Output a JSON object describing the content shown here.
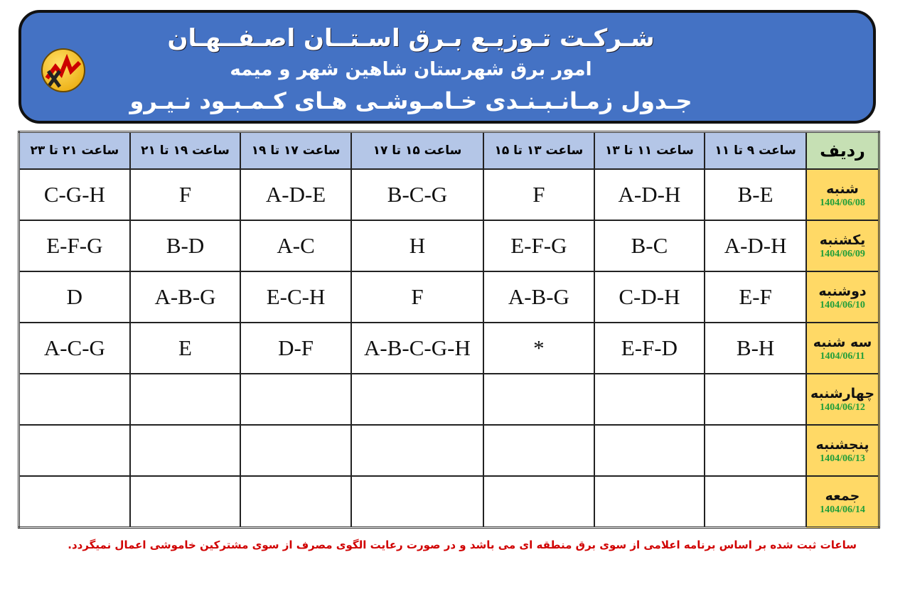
{
  "header": {
    "company": "شـرکـت تـوزیـع بـرق اسـتــان اصـفــهـان",
    "department": "امور برق شهرستان شاهین شهر و میمه",
    "table_title": "جـدول زمـانـبـنـدی خـامـوشـی هـای کـمـبـود نـیـرو",
    "logo_icon": "tavanir-logo"
  },
  "columns": [
    "ردیف",
    "ساعت ۹ تا ۱۱",
    "ساعت ۱۱ تا ۱۳",
    "ساعت ۱۳ تا ۱۵",
    "ساعت ۱۵ تا ۱۷",
    "ساعت ۱۷ تا ۱۹",
    "ساعت ۱۹ تا ۲۱",
    "ساعت ۲۱ تا ۲۳"
  ],
  "rows": [
    {
      "day": "شنبه",
      "date": "1404/06/08",
      "cells": [
        "B-E",
        "A-D-H",
        "F",
        "B-C-G",
        "A-D-E",
        "F",
        "C-G-H"
      ]
    },
    {
      "day": "یکشنبه",
      "date": "1404/06/09",
      "cells": [
        "A-D-H",
        "B-C",
        "E-F-G",
        "H",
        "A-C",
        "B-D",
        "E-F-G"
      ]
    },
    {
      "day": "دوشنبه",
      "date": "1404/06/10",
      "cells": [
        "E-F",
        "C-D-H",
        "A-B-G",
        "F",
        "E-C-H",
        "A-B-G",
        "D"
      ]
    },
    {
      "day": "سه شنبه",
      "date": "1404/06/11",
      "cells": [
        "B-H",
        "E-F-D",
        "*",
        "A-B-C-G-H",
        "D-F",
        "E",
        "A-C-G"
      ]
    },
    {
      "day": "چهارشنبه",
      "date": "1404/06/12",
      "cells": [
        "",
        "",
        "",
        "",
        "",
        "",
        ""
      ]
    },
    {
      "day": "پنجشنبه",
      "date": "1404/06/13",
      "cells": [
        "",
        "",
        "",
        "",
        "",
        "",
        ""
      ]
    },
    {
      "day": "جمعه",
      "date": "1404/06/14",
      "cells": [
        "",
        "",
        "",
        "",
        "",
        "",
        ""
      ]
    }
  ],
  "footer": "ساعات ثبت شده بر اساس برنامه اعلامی از سوی برق منطقه ای می باشد و در صورت رعایت الگوی مصرف از سوی مشترکین خاموشی اعمال نمیگردد.",
  "colors": {
    "banner": "#4472c4",
    "header_cells": "#b4c6e7",
    "day_cells": "#ffd966",
    "radif_cell": "#c6e0b4",
    "date_text": "#1f9e3a",
    "footer_text": "#d00000"
  }
}
